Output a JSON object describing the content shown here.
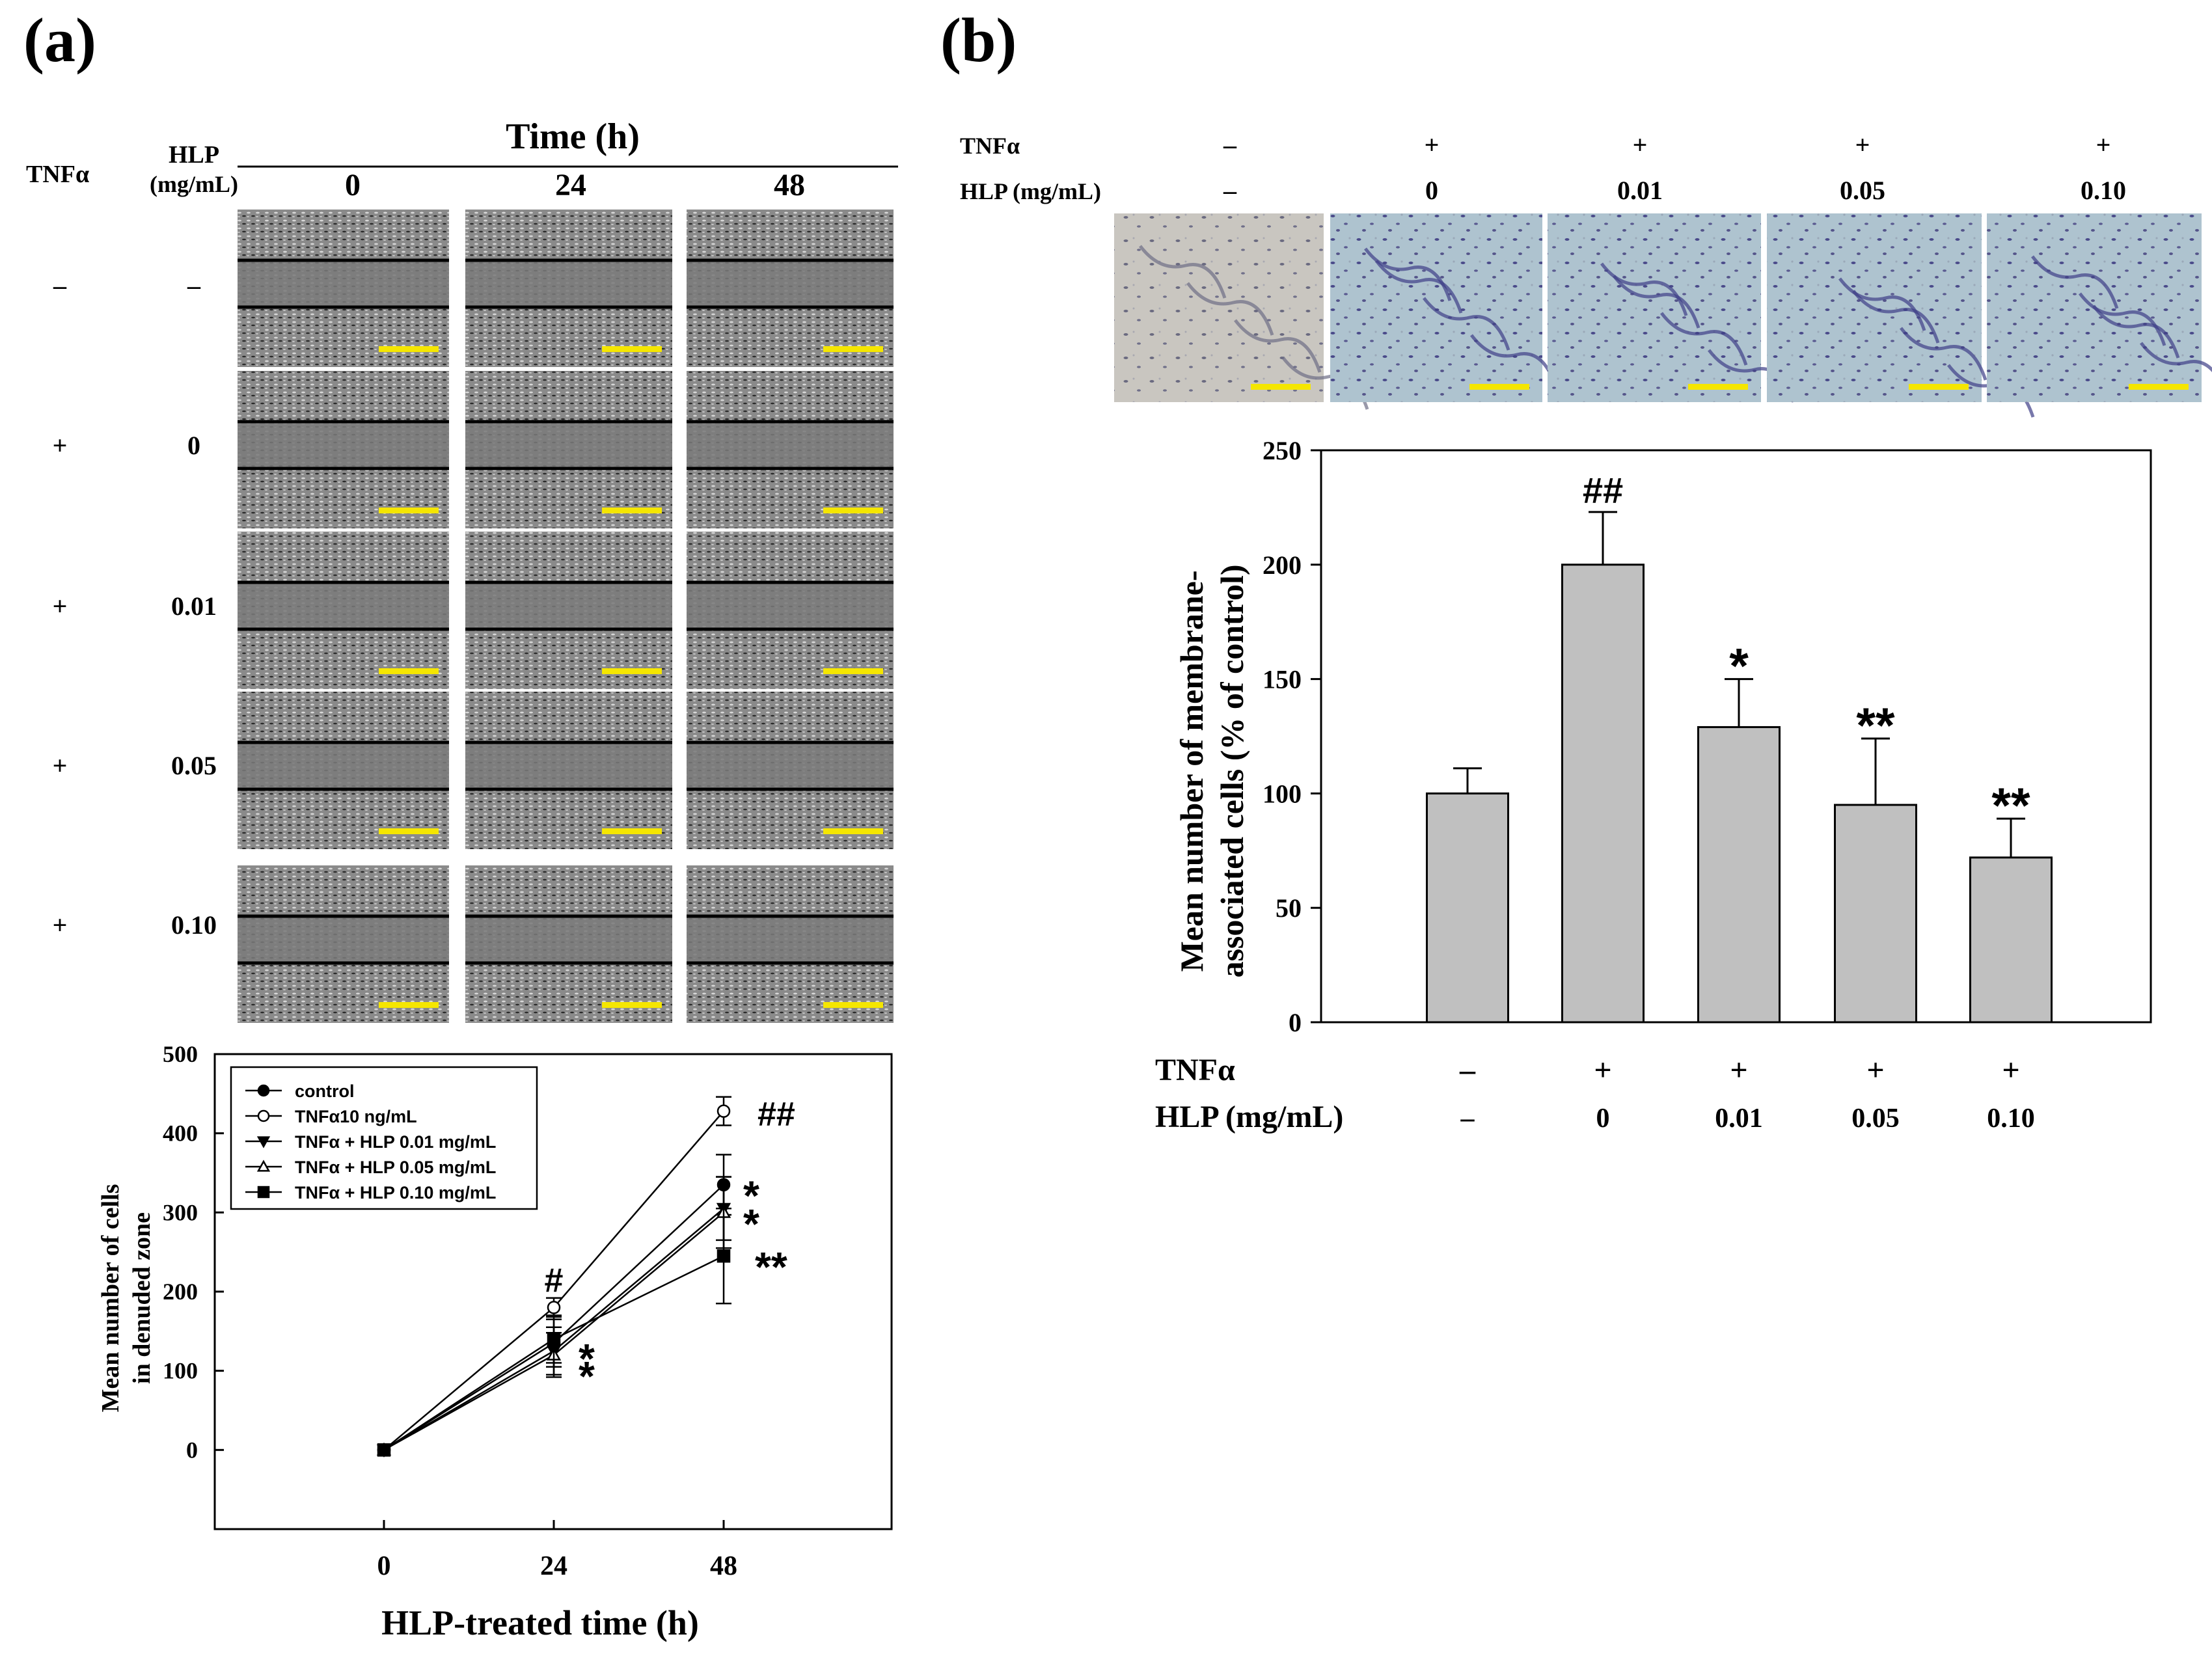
{
  "panel_a": {
    "letter": "(a)",
    "micro": {
      "time_header": "Time (h)",
      "tnf_header": "TNFα",
      "hlp_header_line1": "HLP",
      "hlp_header_line2": "(mg/mL)",
      "times": [
        "0",
        "24",
        "48"
      ],
      "rows": [
        {
          "tnf": "–",
          "hlp": "–"
        },
        {
          "tnf": "+",
          "hlp": "0"
        },
        {
          "tnf": "+",
          "hlp": "0.01"
        },
        {
          "tnf": "+",
          "hlp": "0.05"
        },
        {
          "tnf": "+",
          "hlp": "0.10"
        }
      ]
    }
  },
  "panel_b": {
    "letter": "(b)",
    "micro": {
      "tnf_label": "TNFα",
      "hlp_label": "HLP (mg/mL)",
      "tnf_values": [
        "–",
        "+",
        "+",
        "+",
        "+"
      ],
      "hlp_values": [
        "–",
        "0",
        "0.01",
        "0.05",
        "0.10"
      ]
    }
  },
  "colors": {
    "scale_bar": "#f5e600",
    "bar_fill": "#c0c0c0",
    "scratch_bg": "#7a7a7a",
    "transwell_bg": "#b8c8d0"
  },
  "chart_data": [
    {
      "id": "line",
      "type": "line",
      "xlabel": "HLP-treated time (h)",
      "ylabel_line1": "Mean number of cells",
      "ylabel_line2": "in denuded zone",
      "x": [
        0,
        24,
        48
      ],
      "xticks": [
        "0",
        "24",
        "48"
      ],
      "ylim": [
        -100,
        500
      ],
      "yticks": [
        0,
        100,
        200,
        300,
        400,
        500
      ],
      "ytick_labels": [
        "0",
        "100",
        "200",
        "300",
        "400",
        "500"
      ],
      "legend_position": "top-left",
      "series": [
        {
          "name": "control",
          "marker": "filled-circle",
          "values": [
            0,
            135,
            335
          ],
          "err": [
            0,
            30,
            38
          ]
        },
        {
          "name": "TNFα10 ng/mL",
          "marker": "open-circle",
          "values": [
            0,
            180,
            428
          ],
          "err": [
            0,
            12,
            18
          ]
        },
        {
          "name": "TNFα + HLP 0.01 mg/mL",
          "marker": "filled-triangle-down",
          "values": [
            0,
            125,
            305
          ],
          "err": [
            0,
            30,
            40
          ]
        },
        {
          "name": "TNFα + HLP 0.05 mg/mL",
          "marker": "open-triangle-up",
          "values": [
            0,
            120,
            300
          ],
          "err": [
            0,
            28,
            45
          ]
        },
        {
          "name": "TNFα + HLP 0.10 mg/mL",
          "marker": "filled-square",
          "values": [
            0,
            140,
            245
          ],
          "err": [
            0,
            30,
            60
          ]
        }
      ],
      "annotations": [
        {
          "text": "#",
          "x": 24,
          "y": 215
        },
        {
          "text": "##",
          "x": 48,
          "y": 425
        },
        {
          "text": "*",
          "x": 48,
          "y": 318
        },
        {
          "text": "*",
          "x": 48,
          "y": 282
        },
        {
          "text": "**",
          "x": 48,
          "y": 228
        },
        {
          "text": "*",
          "x": 24,
          "y": 112
        },
        {
          "text": "*",
          "x": 24,
          "y": 90
        }
      ]
    },
    {
      "id": "bar",
      "type": "bar",
      "ylabel_line1": "Mean number of membrane-",
      "ylabel_line2": "associated cells (% of control)",
      "ylim": [
        0,
        250
      ],
      "yticks": [
        0,
        50,
        100,
        150,
        200,
        250
      ],
      "ytick_labels": [
        "0",
        "50",
        "100",
        "150",
        "200",
        "250"
      ],
      "categories": [
        "control",
        "TNFα",
        "TNFα+HLP 0.01",
        "TNFα+HLP 0.05",
        "TNFα+HLP 0.10"
      ],
      "values": [
        100,
        200,
        129,
        95,
        72
      ],
      "err": [
        11,
        23,
        21,
        29,
        17
      ],
      "sig": [
        "",
        "##",
        "*",
        "**",
        "**"
      ],
      "row1_label": "TNFα",
      "row2_label": "HLP (mg/mL)",
      "row1": [
        "–",
        "+",
        "+",
        "+",
        "+"
      ],
      "row2": [
        "–",
        "0",
        "0.01",
        "0.05",
        "0.10"
      ]
    }
  ]
}
